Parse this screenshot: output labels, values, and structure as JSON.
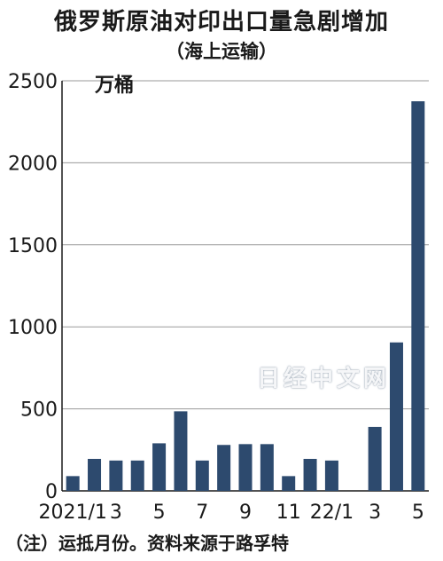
{
  "title": "俄罗斯原油对印出口量急剧增加",
  "subtitle": "（海上运输）",
  "note": "（注）运抵月份。资料来源于路孚特",
  "watermark": "日经中文网",
  "colors": {
    "bar": "#2d4a6e",
    "grid": "#9a9a9a",
    "axis": "#1a1a1a"
  },
  "chart_data": {
    "type": "bar",
    "title": "俄罗斯原油对印出口量急剧增加",
    "subtitle": "（海上运输）",
    "ylabel": "万桶",
    "xlabel": "",
    "ylim": [
      0,
      2500
    ],
    "yticks": [
      0,
      500,
      1000,
      1500,
      2000,
      2500
    ],
    "grid": true,
    "categories": [
      "2021/1",
      "2021/2",
      "2021/3",
      "2021/4",
      "2021/5",
      "2021/6",
      "2021/7",
      "2021/8",
      "2021/9",
      "2021/10",
      "2021/11",
      "2021/12",
      "22/1",
      "22/2",
      "22/3",
      "22/4",
      "22/5"
    ],
    "values": [
      90,
      195,
      185,
      185,
      290,
      485,
      185,
      280,
      285,
      285,
      90,
      195,
      185,
      0,
      390,
      905,
      2375
    ],
    "xtick_labels": [
      {
        "index": 0,
        "label": "2021/1"
      },
      {
        "index": 2,
        "label": "3"
      },
      {
        "index": 4,
        "label": "5"
      },
      {
        "index": 6,
        "label": "7"
      },
      {
        "index": 8,
        "label": "9"
      },
      {
        "index": 10,
        "label": "11"
      },
      {
        "index": 12,
        "label": "22/1"
      },
      {
        "index": 14,
        "label": "3"
      },
      {
        "index": 16,
        "label": "5"
      }
    ]
  }
}
